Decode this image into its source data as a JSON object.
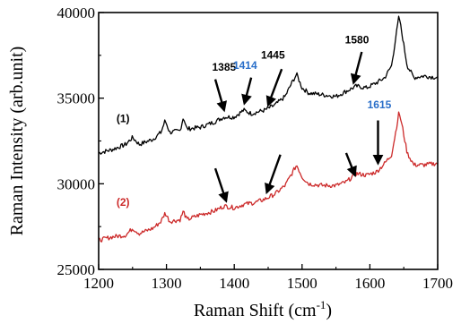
{
  "chart_data": {
    "type": "line",
    "xlabel": "Raman Shift (cm",
    "xlabel_sup": "-1",
    "xlabel_close": ")",
    "ylabel": "Raman Intensity (arb.unit)",
    "xlim": [
      1200,
      1700
    ],
    "ylim": [
      25000,
      40000
    ],
    "x_ticks": [
      "1200",
      "1300",
      "1400",
      "1500",
      "1600",
      "1700"
    ],
    "y_ticks": [
      "25000",
      "30000",
      "35000",
      "40000"
    ],
    "grid": false,
    "colors": {
      "series1": "#000000",
      "series2": "#cc2a2a",
      "annotation_blue": "#2a6fc9"
    },
    "series": [
      {
        "name": "(1)",
        "color": "#000000",
        "points": [
          [
            1200,
            31800
          ],
          [
            1220,
            32000
          ],
          [
            1240,
            32300
          ],
          [
            1250,
            32700
          ],
          [
            1260,
            32300
          ],
          [
            1280,
            32600
          ],
          [
            1292,
            33000
          ],
          [
            1298,
            33700
          ],
          [
            1305,
            33000
          ],
          [
            1320,
            33100
          ],
          [
            1325,
            33900
          ],
          [
            1330,
            33200
          ],
          [
            1350,
            33300
          ],
          [
            1370,
            33600
          ],
          [
            1385,
            33900
          ],
          [
            1400,
            33900
          ],
          [
            1414,
            34300
          ],
          [
            1425,
            34100
          ],
          [
            1445,
            34300
          ],
          [
            1460,
            34600
          ],
          [
            1475,
            35100
          ],
          [
            1485,
            35900
          ],
          [
            1492,
            36400
          ],
          [
            1500,
            35600
          ],
          [
            1510,
            35300
          ],
          [
            1530,
            35200
          ],
          [
            1550,
            35100
          ],
          [
            1565,
            35400
          ],
          [
            1580,
            35700
          ],
          [
            1595,
            35600
          ],
          [
            1610,
            35900
          ],
          [
            1622,
            36200
          ],
          [
            1632,
            36900
          ],
          [
            1638,
            38500
          ],
          [
            1643,
            39800
          ],
          [
            1648,
            38600
          ],
          [
            1655,
            36900
          ],
          [
            1665,
            36200
          ],
          [
            1680,
            36300
          ],
          [
            1700,
            36200
          ]
        ]
      },
      {
        "name": "(2)",
        "color": "#cc2a2a",
        "points": [
          [
            1200,
            26700
          ],
          [
            1220,
            26900
          ],
          [
            1240,
            27000
          ],
          [
            1250,
            27400
          ],
          [
            1260,
            27100
          ],
          [
            1280,
            27400
          ],
          [
            1292,
            27800
          ],
          [
            1298,
            28300
          ],
          [
            1305,
            27800
          ],
          [
            1320,
            27900
          ],
          [
            1325,
            28400
          ],
          [
            1330,
            27900
          ],
          [
            1350,
            28200
          ],
          [
            1370,
            28400
          ],
          [
            1385,
            28700
          ],
          [
            1400,
            28600
          ],
          [
            1414,
            28800
          ],
          [
            1430,
            28900
          ],
          [
            1445,
            29100
          ],
          [
            1460,
            29400
          ],
          [
            1475,
            29900
          ],
          [
            1485,
            30600
          ],
          [
            1492,
            31100
          ],
          [
            1500,
            30400
          ],
          [
            1510,
            30000
          ],
          [
            1530,
            29900
          ],
          [
            1550,
            29900
          ],
          [
            1565,
            30100
          ],
          [
            1580,
            30600
          ],
          [
            1595,
            30500
          ],
          [
            1610,
            30700
          ],
          [
            1622,
            31200
          ],
          [
            1632,
            31700
          ],
          [
            1638,
            33000
          ],
          [
            1643,
            34200
          ],
          [
            1648,
            33300
          ],
          [
            1655,
            31800
          ],
          [
            1665,
            31100
          ],
          [
            1680,
            31100
          ],
          [
            1700,
            31200
          ]
        ]
      }
    ],
    "annotations": [
      {
        "text": "1385",
        "x": 1385,
        "y": 36600,
        "color": "#000000"
      },
      {
        "text": "1414",
        "x": 1416,
        "y": 36700,
        "color": "#2a6fc9"
      },
      {
        "text": "1445",
        "x": 1457,
        "y": 37300,
        "color": "#000000"
      },
      {
        "text": "1580",
        "x": 1581,
        "y": 38200,
        "color": "#000000"
      },
      {
        "text": "1615",
        "x": 1614,
        "y": 34400,
        "color": "#2a6fc9"
      },
      {
        "text": "(1)",
        "x": 1236,
        "y": 33600,
        "color": "#000000"
      },
      {
        "text": "(2)",
        "x": 1236,
        "y": 28700,
        "color": "#cc2a2a"
      }
    ],
    "arrows": [
      {
        "from": [
          1372,
          36100
        ],
        "to": [
          1385,
          34300
        ]
      },
      {
        "from": [
          1425,
          36200
        ],
        "to": [
          1415,
          34700
        ]
      },
      {
        "from": [
          1470,
          36700
        ],
        "to": [
          1450,
          34600
        ]
      },
      {
        "from": [
          1588,
          37700
        ],
        "to": [
          1576,
          35900
        ]
      },
      {
        "from": [
          1612,
          33700
        ],
        "to": [
          1612,
          31200
        ]
      },
      {
        "from": [
          1372,
          30900
        ],
        "to": [
          1388,
          29000
        ]
      },
      {
        "from": [
          1468,
          31700
        ],
        "to": [
          1448,
          29500
        ]
      },
      {
        "from": [
          1565,
          31800
        ],
        "to": [
          1578,
          30500
        ]
      }
    ]
  }
}
